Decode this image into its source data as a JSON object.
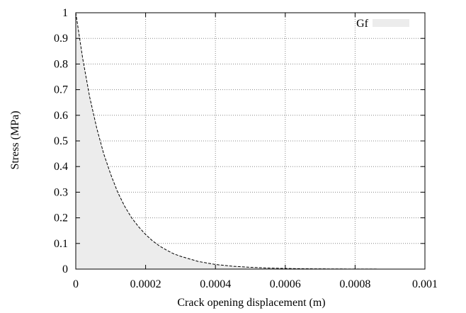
{
  "chart_data": {
    "type": "area",
    "xlabel": "Crack opening displacement (m)",
    "ylabel": "Stress (MPa)",
    "xlim": [
      0,
      0.001
    ],
    "ylim": [
      0,
      1
    ],
    "xticks": [
      "0",
      "0.0002",
      "0.0004",
      "0.0006",
      "0.0008",
      "0.001"
    ],
    "yticks": [
      "0",
      "0.1",
      "0.2",
      "0.3",
      "0.4",
      "0.5",
      "0.6",
      "0.7",
      "0.8",
      "0.9",
      "1"
    ],
    "grid": true,
    "legend": {
      "position": "top-right",
      "entries": [
        "Gf"
      ]
    },
    "colors": {
      "fill": "#ececec",
      "line": "#000000",
      "grid": "#888888"
    },
    "series": [
      {
        "name": "Gf",
        "style": "shaded area under dashed curve",
        "x": [
          0,
          2e-05,
          4e-05,
          6e-05,
          8e-05,
          0.0001,
          0.00012,
          0.00014,
          0.00016,
          0.00018,
          0.0002,
          0.00022,
          0.00024,
          0.00026,
          0.00028,
          0.0003,
          0.00035,
          0.0004,
          0.00045,
          0.0005,
          0.00055,
          0.0006,
          0.00065,
          0.0007,
          0.00075,
          0.0008,
          0.00085,
          0.0009,
          0.00095
        ],
        "y": [
          1.0,
          0.82,
          0.67,
          0.55,
          0.45,
          0.37,
          0.3,
          0.245,
          0.2,
          0.165,
          0.135,
          0.11,
          0.09,
          0.074,
          0.06,
          0.05,
          0.03,
          0.018,
          0.011,
          0.007,
          0.004,
          0.0025,
          0.0015,
          0.001,
          0.0006,
          0.0004,
          0.0002,
          0.0001,
          0.0001
        ]
      }
    ]
  }
}
